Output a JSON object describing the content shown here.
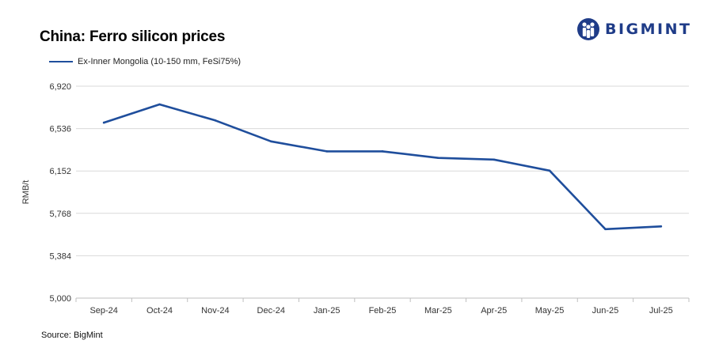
{
  "header": {
    "title": "China: Ferro silicon prices"
  },
  "brand": {
    "name": "BIGMINT",
    "color": "#1f3c88"
  },
  "footer": {
    "source": "Source:  BigMint"
  },
  "chart_data": {
    "type": "line",
    "title": "China: Ferro silicon prices",
    "xlabel": "",
    "ylabel": "RMB/t",
    "categories": [
      "Sep-24",
      "Oct-24",
      "Nov-24",
      "Dec-24",
      "Jan-25",
      "Feb-25",
      "Mar-25",
      "Apr-25",
      "May-25",
      "Jun-25",
      "Jul-25"
    ],
    "yticks": [
      "6,920",
      "6,536",
      "6,152",
      "5,768",
      "5,384",
      "5,000"
    ],
    "ylim": [
      5000,
      6920
    ],
    "grid": true,
    "legend_position": "top-left",
    "series": [
      {
        "name": "Ex-Inner Mongolia (10-150 mm, FeSi75%)",
        "color": "#1f4e9c",
        "values": [
          6590,
          6755,
          6610,
          6420,
          6330,
          6330,
          6270,
          6255,
          6155,
          5625,
          5650
        ]
      }
    ]
  }
}
